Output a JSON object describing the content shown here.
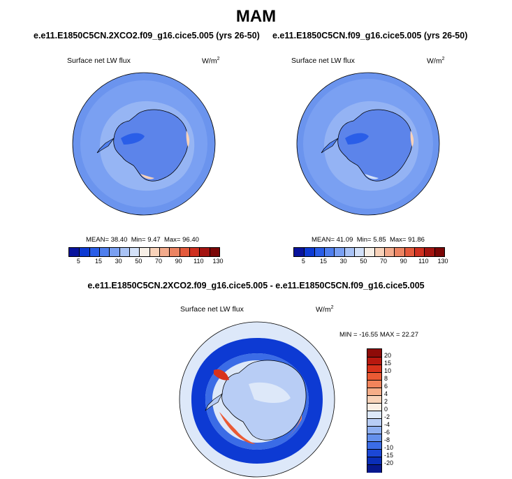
{
  "title": "MAM",
  "panels": [
    {
      "case": "e.e11.E1850C5CN.2XCO2.f09_g16.cice5.005 (yrs 26-50)",
      "field": "Surface net LW flux",
      "units": "W/m",
      "units_sup": "2",
      "mean_label": "MEAN=",
      "mean": "38.40",
      "min_label": "Min=",
      "min": "9.47",
      "max_label": "Max=",
      "max": "96.40"
    },
    {
      "case": "e.e11.E1850C5CN.f09_g16.cice5.005 (yrs 26-50)",
      "field": "Surface net LW flux",
      "units": "W/m",
      "units_sup": "2",
      "mean_label": "MEAN=",
      "mean": "41.09",
      "min_label": "Min=",
      "min": "5.85",
      "max_label": "Max=",
      "max": "91.86"
    }
  ],
  "diff": {
    "title": "e.e11.E1850C5CN.2XCO2.f09_g16.cice5.005 - e.e11.E1850C5CN.f09_g16.cice5.005",
    "field": "Surface net LW flux",
    "units": "W/m",
    "units_sup": "2",
    "minmax": "MIN = -16.55 MAX =  22.27"
  },
  "abs_colorbar": {
    "colors": [
      "#08139c",
      "#0d3ad3",
      "#2a5ee8",
      "#4f7fee",
      "#7aa0f2",
      "#a9c3f5",
      "#d3e1f8",
      "#f7efe6",
      "#f8d2b9",
      "#f3ab8c",
      "#ec8462",
      "#e45a3c",
      "#cf3020",
      "#a31410",
      "#7a0606"
    ],
    "labels": [
      "5",
      "15",
      "30",
      "50",
      "70",
      "90",
      "110",
      "130"
    ]
  },
  "diff_colorbar": {
    "colors": [
      "#8e0b08",
      "#b8180f",
      "#d8321b",
      "#ea5a34",
      "#f2845b",
      "#f5ad88",
      "#f8d2b8",
      "#fbeee4",
      "#dde8f9",
      "#b8cdf5",
      "#8fb0f1",
      "#6490ec",
      "#3b6ce6",
      "#1b47d6",
      "#0a2eb8",
      "#07188e"
    ],
    "labels": [
      "20",
      "15",
      "10",
      "8",
      "6",
      "4",
      "2",
      "0",
      "-2",
      "-4",
      "-6",
      "-8",
      "-10",
      "-15",
      "-20"
    ]
  },
  "colors": {
    "ocean_abs": "#7aa0f2",
    "ocean_outer": "#6b94ee",
    "land_abs": "#5c84ea",
    "diff_ocean": "#dde8f9",
    "diff_ring": "#0d3ad3",
    "diff_land": "#b8cdf5"
  }
}
